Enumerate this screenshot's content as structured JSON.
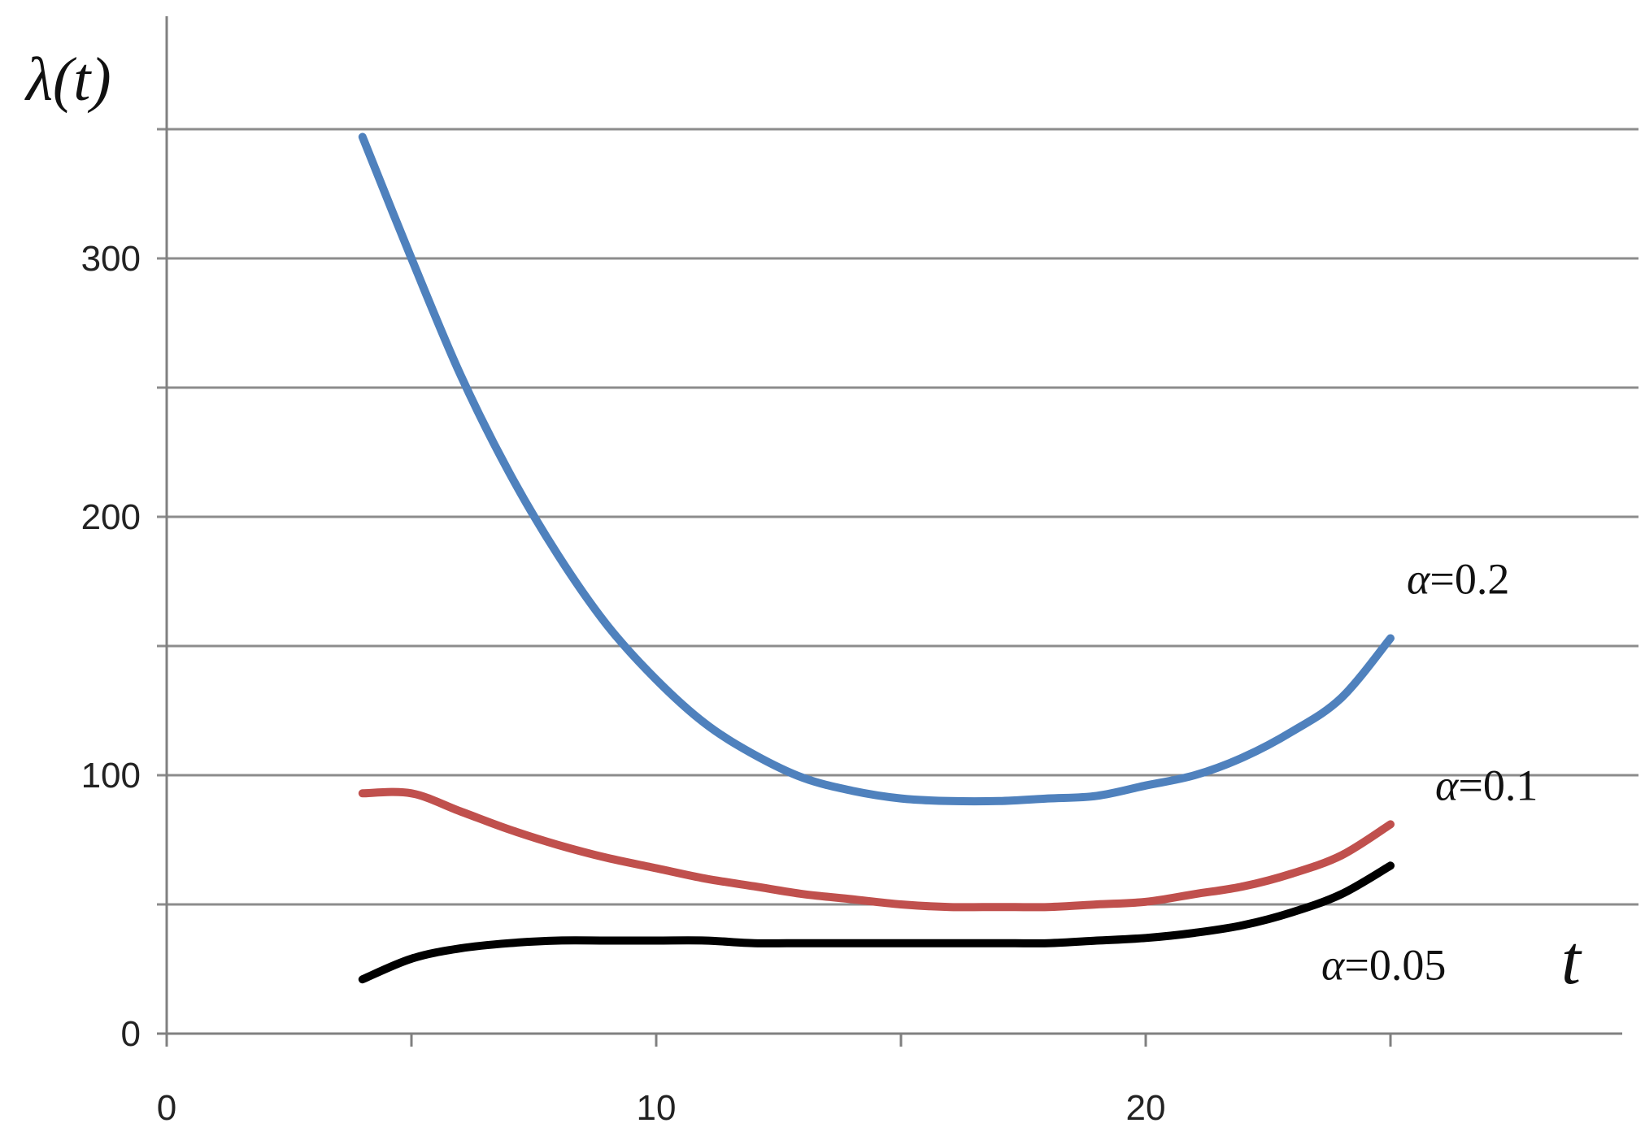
{
  "chart_data": {
    "type": "line",
    "title": "",
    "xlabel": "t",
    "ylabel": "λ(t)",
    "xlim": [
      0,
      30
    ],
    "ylim": [
      0,
      350
    ],
    "x_ticks": [
      0,
      5,
      10,
      15,
      20,
      25
    ],
    "x_tick_labels": [
      "0",
      "",
      "10",
      "",
      "20",
      ""
    ],
    "y_ticks": [
      0,
      50,
      100,
      150,
      200,
      250,
      300,
      350
    ],
    "y_tick_labels": [
      "0",
      "",
      "100",
      "",
      "200",
      "",
      "300",
      ""
    ],
    "grid": true,
    "legend": "labels placed next to line ends",
    "series": [
      {
        "name": "α=0.2",
        "color": "#4f81bd",
        "x": [
          4,
          5,
          6,
          7,
          8,
          9,
          10,
          11,
          12,
          13,
          14,
          15,
          16,
          17,
          18,
          19,
          20,
          21,
          22,
          23,
          24,
          25
        ],
        "y": [
          347,
          300,
          255,
          217,
          185,
          158,
          137,
          120,
          108,
          99,
          94,
          91,
          90,
          90,
          91,
          92,
          96,
          100,
          107,
          117,
          130,
          153
        ]
      },
      {
        "name": "α=0.1",
        "color": "#c0504d",
        "x": [
          4,
          5,
          6,
          7,
          8,
          9,
          10,
          11,
          12,
          13,
          14,
          15,
          16,
          17,
          18,
          19,
          20,
          21,
          22,
          23,
          24,
          25
        ],
        "y": [
          93,
          93,
          86,
          79,
          73,
          68,
          64,
          60,
          57,
          54,
          52,
          50,
          49,
          49,
          49,
          50,
          51,
          54,
          57,
          62,
          69,
          81
        ]
      },
      {
        "name": "α=0.05",
        "color": "#000000",
        "x": [
          4,
          5,
          6,
          7,
          8,
          9,
          10,
          11,
          12,
          13,
          14,
          15,
          16,
          17,
          18,
          19,
          20,
          21,
          22,
          23,
          24,
          25
        ],
        "y": [
          21,
          29,
          33,
          35,
          36,
          36,
          36,
          36,
          35,
          35,
          35,
          35,
          35,
          35,
          35,
          36,
          37,
          39,
          42,
          47,
          54,
          65
        ]
      }
    ]
  }
}
